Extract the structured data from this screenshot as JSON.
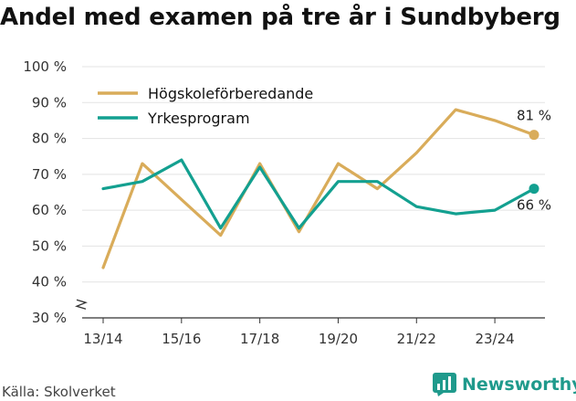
{
  "title": "Andel med examen på tre år i Sundbyberg",
  "source": "Källa: Skolverket",
  "brand": "Newsworthy",
  "chart_data": {
    "type": "line",
    "title": "Andel med examen på tre år i Sundbyberg",
    "xlabel": "",
    "ylabel": "",
    "categories": [
      "13/14",
      "14/15",
      "15/16",
      "16/17",
      "17/18",
      "18/19",
      "19/20",
      "20/21",
      "21/22",
      "22/23",
      "23/24",
      "24/25"
    ],
    "tick_labels": [
      "13/14",
      "15/16",
      "17/18",
      "19/20",
      "21/22",
      "23/24"
    ],
    "y_ticks": [
      30,
      40,
      50,
      60,
      70,
      80,
      90,
      100
    ],
    "y_tick_labels": [
      "30 %",
      "40 %",
      "50 %",
      "60 %",
      "70 %",
      "80 %",
      "90 %",
      "100 %"
    ],
    "ylim": [
      30,
      100
    ],
    "y_axis_break": true,
    "grid": true,
    "legend_position": "top-left",
    "series": [
      {
        "name": "Högskoleförberedande",
        "color": "#d9ac5a",
        "values": [
          44,
          73,
          63,
          53,
          73,
          54,
          73,
          66,
          76,
          88,
          85,
          81
        ],
        "end_label": "81 %"
      },
      {
        "name": "Yrkesprogram",
        "color": "#13a090",
        "values": [
          66,
          68,
          74,
          55,
          72,
          55,
          68,
          68,
          61,
          59,
          60,
          66
        ],
        "end_label": "66 %"
      }
    ]
  }
}
